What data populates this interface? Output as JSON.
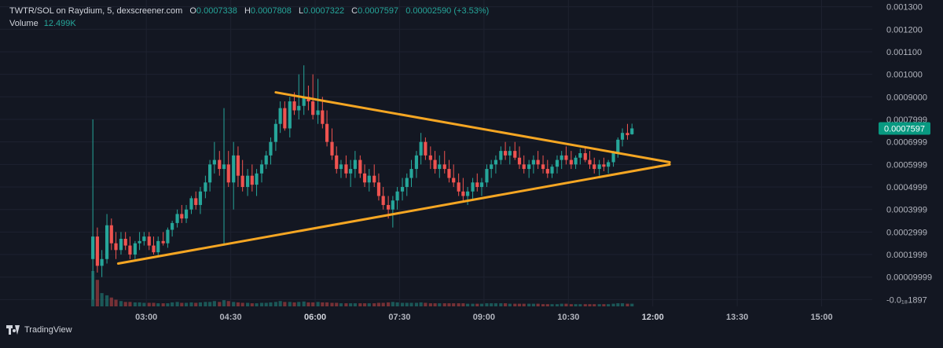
{
  "legend": {
    "symbol": "TWTR/SOL on Raydium, 5, dexscreener.com",
    "o_label": "O",
    "o_value": "0.0007338",
    "h_label": "H",
    "h_value": "0.0007808",
    "l_label": "L",
    "l_value": "0.0007322",
    "c_label": "C",
    "c_value": "0.0007597",
    "change": "0.00002590 (+3.53%)",
    "volume_label": "Volume",
    "volume_value": "12.499K"
  },
  "branding": {
    "text": "TradingView"
  },
  "colors": {
    "background": "#131722",
    "up": "#26a69a",
    "down": "#ef5350",
    "trendline": "#f5a623",
    "grid": "#1e2230",
    "price_tag": "#089981",
    "axis_text": "#b2b5be"
  },
  "chart_data": {
    "type": "candlestick",
    "title": "",
    "xlabel": "",
    "ylabel": "",
    "x_ticks": [
      "03:00",
      "04:30",
      "06:00",
      "07:30",
      "09:00",
      "10:30",
      "12:00",
      "13:30",
      "15:00"
    ],
    "x_tick_hours": [
      3,
      4.5,
      6,
      7.5,
      9,
      10.5,
      12,
      13.5,
      15
    ],
    "xlim_hours": [
      0.4,
      15.9
    ],
    "y_ticks": [
      "0.001300",
      "0.001200",
      "0.001100",
      "0.001000",
      "0.0009000",
      "0.0007999",
      "0.0006999",
      "0.0005999",
      "0.0004999",
      "0.0003999",
      "0.0002999",
      "0.0001999",
      "0.00009999",
      "-0.0₁₈1897"
    ],
    "y_tick_values": [
      0.0013,
      0.0012,
      0.0011,
      0.001,
      0.0009,
      0.0008,
      0.0007,
      0.0006,
      0.0005,
      0.0004,
      0.0003,
      0.0002,
      0.0001,
      0.0
    ],
    "ylim": [
      -3e-05,
      0.00133
    ],
    "last_price": "0.0007597",
    "last_price_value": 0.0007597,
    "grid": true,
    "trendlines": [
      {
        "name": "",
        "points": [
          [
            5.3,
            0.00092
          ],
          [
            12.3,
            0.00061
          ]
        ]
      },
      {
        "name": "",
        "points": [
          [
            2.5,
            0.00016
          ],
          [
            12.3,
            0.0006
          ]
        ]
      }
    ],
    "volume": {
      "label": "Volume",
      "last": "12.499K"
    },
    "candles": [
      [
        2.05,
        0.00018,
        0.0008,
        0.0,
        0.00028,
        80
      ],
      [
        2.13,
        0.00028,
        0.00032,
        0.00012,
        0.00015,
        60
      ],
      [
        2.21,
        0.00015,
        0.00022,
        0.0001,
        0.00018,
        30
      ],
      [
        2.3,
        0.00018,
        0.00038,
        0.00016,
        0.00033,
        25
      ],
      [
        2.38,
        0.00033,
        0.00036,
        0.00022,
        0.00025,
        20
      ],
      [
        2.46,
        0.00025,
        0.0003,
        0.00018,
        0.00022,
        15
      ],
      [
        2.55,
        0.00022,
        0.0003,
        0.0002,
        0.00027,
        12
      ],
      [
        2.63,
        0.00027,
        0.0003,
        0.00022,
        0.00024,
        10
      ],
      [
        2.71,
        0.00024,
        0.00028,
        0.00018,
        0.0002,
        10
      ],
      [
        2.8,
        0.0002,
        0.00026,
        0.00018,
        0.00025,
        9
      ],
      [
        2.88,
        0.00025,
        0.0003,
        0.00022,
        0.00026,
        9
      ],
      [
        2.96,
        0.00026,
        0.0003,
        0.00024,
        0.00028,
        8
      ],
      [
        3.05,
        0.00028,
        0.0003,
        0.00022,
        0.00024,
        8
      ],
      [
        3.13,
        0.00024,
        0.00028,
        0.0002,
        0.00021,
        8
      ],
      [
        3.21,
        0.00021,
        0.00028,
        0.00019,
        0.00026,
        7
      ],
      [
        3.3,
        0.00026,
        0.0003,
        0.00024,
        0.00025,
        7
      ],
      [
        3.38,
        0.00025,
        0.00032,
        0.00023,
        0.00031,
        7
      ],
      [
        3.46,
        0.00031,
        0.00035,
        0.00028,
        0.00034,
        9
      ],
      [
        3.55,
        0.00034,
        0.0004,
        0.00032,
        0.00038,
        10
      ],
      [
        3.63,
        0.00038,
        0.00042,
        0.00034,
        0.00036,
        8
      ],
      [
        3.71,
        0.00036,
        0.00042,
        0.00034,
        0.0004,
        8
      ],
      [
        3.8,
        0.0004,
        0.00046,
        0.00038,
        0.00045,
        9
      ],
      [
        3.88,
        0.00045,
        0.00048,
        0.0004,
        0.00042,
        8
      ],
      [
        3.96,
        0.00042,
        0.0005,
        0.00038,
        0.00048,
        9
      ],
      [
        4.05,
        0.00048,
        0.00055,
        0.00045,
        0.00052,
        10
      ],
      [
        4.13,
        0.00052,
        0.00062,
        0.00048,
        0.0006,
        10
      ],
      [
        4.21,
        0.0006,
        0.0007,
        0.00056,
        0.00062,
        12
      ],
      [
        4.3,
        0.00062,
        0.00066,
        0.00055,
        0.00058,
        10
      ],
      [
        4.38,
        0.00058,
        0.00085,
        0.00024,
        0.0006,
        14
      ],
      [
        4.46,
        0.0006,
        0.00066,
        0.0005,
        0.00052,
        12
      ],
      [
        4.55,
        0.00052,
        0.0007,
        0.0004,
        0.00064,
        10
      ],
      [
        4.63,
        0.00064,
        0.00068,
        0.0005,
        0.00055,
        9
      ],
      [
        4.71,
        0.00055,
        0.00062,
        0.00048,
        0.0005,
        8
      ],
      [
        4.8,
        0.0005,
        0.00058,
        0.00046,
        0.00055,
        8
      ],
      [
        4.88,
        0.00055,
        0.0006,
        0.00048,
        0.00051,
        7
      ],
      [
        4.96,
        0.00051,
        0.00058,
        0.00046,
        0.00056,
        7
      ],
      [
        5.05,
        0.00056,
        0.00062,
        0.00052,
        0.0006,
        8
      ],
      [
        5.13,
        0.0006,
        0.00066,
        0.00058,
        0.00064,
        8
      ],
      [
        5.21,
        0.00064,
        0.00072,
        0.0006,
        0.0007,
        9
      ],
      [
        5.3,
        0.0007,
        0.0008,
        0.00066,
        0.00078,
        10
      ],
      [
        5.38,
        0.00078,
        0.00088,
        0.00074,
        0.00085,
        12
      ],
      [
        5.46,
        0.00085,
        0.00088,
        0.00075,
        0.00076,
        10
      ],
      [
        5.55,
        0.00076,
        0.0009,
        0.00072,
        0.00088,
        10
      ],
      [
        5.63,
        0.00088,
        0.00092,
        0.00082,
        0.00084,
        9
      ],
      [
        5.71,
        0.00084,
        0.001,
        0.0008,
        0.00086,
        10
      ],
      [
        5.8,
        0.00086,
        0.00104,
        0.00082,
        0.0009,
        11
      ],
      [
        5.88,
        0.0009,
        0.00095,
        0.00084,
        0.00088,
        9
      ],
      [
        5.96,
        0.00088,
        0.001,
        0.0008,
        0.00082,
        9
      ],
      [
        6.05,
        0.00082,
        0.00098,
        0.00078,
        0.00084,
        10
      ],
      [
        6.13,
        0.00084,
        0.0009,
        0.00076,
        0.00078,
        9
      ],
      [
        6.21,
        0.00078,
        0.00084,
        0.00068,
        0.0007,
        9
      ],
      [
        6.3,
        0.0007,
        0.00076,
        0.00062,
        0.00064,
        8
      ],
      [
        6.38,
        0.00064,
        0.00068,
        0.00056,
        0.00058,
        8
      ],
      [
        6.46,
        0.00058,
        0.00062,
        0.00054,
        0.0006,
        7
      ],
      [
        6.55,
        0.0006,
        0.00064,
        0.00054,
        0.00056,
        7
      ],
      [
        6.63,
        0.00056,
        0.00062,
        0.0005,
        0.00058,
        7
      ],
      [
        6.71,
        0.00058,
        0.00066,
        0.00054,
        0.00062,
        7
      ],
      [
        6.8,
        0.00062,
        0.00064,
        0.00054,
        0.00056,
        7
      ],
      [
        6.88,
        0.00056,
        0.0006,
        0.0005,
        0.00052,
        7
      ],
      [
        6.96,
        0.00052,
        0.00058,
        0.00048,
        0.00055,
        7
      ],
      [
        7.05,
        0.00055,
        0.0006,
        0.0005,
        0.00052,
        7
      ],
      [
        7.13,
        0.00052,
        0.00056,
        0.00044,
        0.00046,
        8
      ],
      [
        7.21,
        0.00046,
        0.0005,
        0.0004,
        0.00042,
        8
      ],
      [
        7.3,
        0.00042,
        0.00046,
        0.00036,
        0.0004,
        9
      ],
      [
        7.38,
        0.0004,
        0.00046,
        0.00032,
        0.00044,
        10
      ],
      [
        7.46,
        0.00044,
        0.0005,
        0.0004,
        0.00048,
        9
      ],
      [
        7.55,
        0.00048,
        0.00054,
        0.00044,
        0.0005,
        8
      ],
      [
        7.63,
        0.0005,
        0.00056,
        0.00046,
        0.00054,
        8
      ],
      [
        7.71,
        0.00054,
        0.00062,
        0.0005,
        0.00058,
        8
      ],
      [
        7.8,
        0.00058,
        0.00066,
        0.00054,
        0.00064,
        8
      ],
      [
        7.88,
        0.00064,
        0.00074,
        0.0006,
        0.0007,
        9
      ],
      [
        7.96,
        0.0007,
        0.00072,
        0.00062,
        0.00064,
        8
      ],
      [
        8.05,
        0.00064,
        0.00068,
        0.00058,
        0.00062,
        7
      ],
      [
        8.13,
        0.00062,
        0.00066,
        0.00056,
        0.00058,
        7
      ],
      [
        8.21,
        0.00058,
        0.00064,
        0.00054,
        0.0006,
        7
      ],
      [
        8.3,
        0.0006,
        0.00066,
        0.00056,
        0.00058,
        7
      ],
      [
        8.38,
        0.00058,
        0.00062,
        0.00052,
        0.00054,
        7
      ],
      [
        8.46,
        0.00054,
        0.0006,
        0.0005,
        0.00052,
        7
      ],
      [
        8.55,
        0.00052,
        0.00056,
        0.00046,
        0.00048,
        7
      ],
      [
        8.63,
        0.00048,
        0.00054,
        0.00044,
        0.00046,
        7
      ],
      [
        8.71,
        0.00046,
        0.0005,
        0.00042,
        0.00048,
        6
      ],
      [
        8.8,
        0.00048,
        0.00054,
        0.00044,
        0.00052,
        6
      ],
      [
        8.88,
        0.00052,
        0.00056,
        0.00048,
        0.0005,
        6
      ],
      [
        8.96,
        0.0005,
        0.00054,
        0.00046,
        0.00052,
        6
      ],
      [
        9.05,
        0.00052,
        0.0006,
        0.0005,
        0.00058,
        7
      ],
      [
        9.13,
        0.00058,
        0.00062,
        0.00054,
        0.0006,
        7
      ],
      [
        9.21,
        0.0006,
        0.00064,
        0.00056,
        0.00062,
        7
      ],
      [
        9.3,
        0.00062,
        0.00068,
        0.0006,
        0.00066,
        7
      ],
      [
        9.38,
        0.00066,
        0.0007,
        0.00062,
        0.00064,
        7
      ],
      [
        9.46,
        0.00064,
        0.00068,
        0.0006,
        0.00066,
        6
      ],
      [
        9.55,
        0.00066,
        0.0007,
        0.00062,
        0.00063,
        6
      ],
      [
        9.63,
        0.00063,
        0.00068,
        0.00058,
        0.0006,
        6
      ],
      [
        9.71,
        0.0006,
        0.00064,
        0.00056,
        0.00058,
        6
      ],
      [
        9.8,
        0.00058,
        0.00062,
        0.00054,
        0.0006,
        6
      ],
      [
        9.88,
        0.0006,
        0.00064,
        0.00056,
        0.00062,
        6
      ],
      [
        9.96,
        0.00062,
        0.00066,
        0.00058,
        0.0006,
        6
      ],
      [
        10.05,
        0.0006,
        0.00064,
        0.00056,
        0.00058,
        5
      ],
      [
        10.13,
        0.00058,
        0.00062,
        0.00054,
        0.00056,
        5
      ],
      [
        10.21,
        0.00056,
        0.0006,
        0.00054,
        0.00059,
        5
      ],
      [
        10.3,
        0.00059,
        0.00064,
        0.00056,
        0.00062,
        5
      ],
      [
        10.38,
        0.00062,
        0.00066,
        0.00058,
        0.00064,
        6
      ],
      [
        10.46,
        0.00064,
        0.00068,
        0.0006,
        0.00062,
        6
      ],
      [
        10.55,
        0.00062,
        0.00066,
        0.00058,
        0.0006,
        5
      ],
      [
        10.63,
        0.0006,
        0.00064,
        0.00058,
        0.00063,
        5
      ],
      [
        10.71,
        0.00063,
        0.00067,
        0.0006,
        0.00065,
        5
      ],
      [
        10.8,
        0.00065,
        0.00068,
        0.00061,
        0.00062,
        5
      ],
      [
        10.88,
        0.00062,
        0.00066,
        0.00058,
        0.0006,
        5
      ],
      [
        10.96,
        0.0006,
        0.00063,
        0.00056,
        0.00058,
        5
      ],
      [
        11.05,
        0.00058,
        0.00062,
        0.00055,
        0.0006,
        5
      ],
      [
        11.13,
        0.0006,
        0.00063,
        0.00057,
        0.00059,
        5
      ],
      [
        11.21,
        0.00059,
        0.00062,
        0.00056,
        0.00061,
        5
      ],
      [
        11.3,
        0.00061,
        0.00066,
        0.00059,
        0.00065,
        6
      ],
      [
        11.38,
        0.00065,
        0.00072,
        0.00063,
        0.00071,
        7
      ],
      [
        11.46,
        0.00071,
        0.00076,
        0.00068,
        0.00074,
        7
      ],
      [
        11.55,
        0.00074,
        0.00078,
        0.00071,
        0.00073,
        6
      ],
      [
        11.63,
        0.000734,
        0.000781,
        0.000732,
        0.00076,
        6
      ]
    ]
  }
}
